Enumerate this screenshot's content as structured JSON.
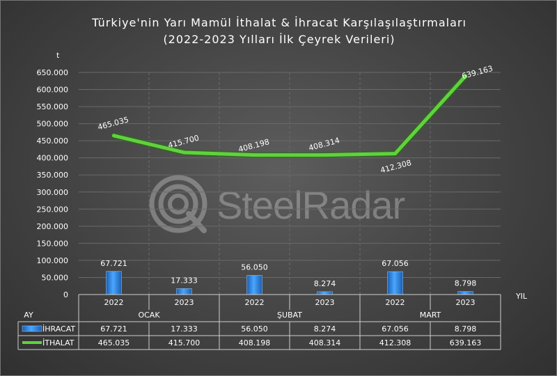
{
  "header": {
    "title_line1": "Türkiye'nin Yarı Mamül İthalat & İhracat Karşılaşılaştırmaları",
    "title_line2": "(2022-2023 Yılları İlk Çeyrek Verileri)"
  },
  "watermark": {
    "text": "SteelRadar"
  },
  "chart_data": {
    "type": "bar",
    "combo": "bar+line",
    "title": "Türkiye'nin Yarı Mamül İthalat & İhracat Karşılaşılaştırmaları (2022-2023 Yılları İlk Çeyrek Verileri)",
    "ylabel": "t",
    "xlabel": "YIL",
    "x_group_label": "AY",
    "ylim": [
      0,
      650000
    ],
    "y_ticks": [
      0,
      50000,
      100000,
      150000,
      200000,
      250000,
      300000,
      350000,
      400000,
      450000,
      500000,
      550000,
      600000,
      650000
    ],
    "y_tick_labels": [
      "0",
      "50.000",
      "100.000",
      "150.000",
      "200.000",
      "250.000",
      "300.000",
      "350.000",
      "400.000",
      "450.000",
      "500.000",
      "550.000",
      "600.000",
      "650.000"
    ],
    "grid": true,
    "categories": [
      "2022",
      "2023",
      "2022",
      "2023",
      "2022",
      "2023"
    ],
    "groups": [
      {
        "label": "OCAK",
        "span": 2
      },
      {
        "label": "ŞUBAT",
        "span": 2
      },
      {
        "label": "MART",
        "span": 2
      }
    ],
    "series": [
      {
        "name": "İHRACAT",
        "kind": "bar",
        "color": "#2e86e0",
        "values": [
          67721,
          17333,
          56050,
          8274,
          67056,
          8798
        ],
        "labels": [
          "67.721",
          "17.333",
          "56.050",
          "8.274",
          "67.056",
          "8.798"
        ]
      },
      {
        "name": "İTHALAT",
        "kind": "line",
        "color": "#5fd33b",
        "values": [
          465035,
          415700,
          408198,
          408314,
          412308,
          639163
        ],
        "labels": [
          "465.035",
          "415.700",
          "408.198",
          "408.314",
          "412.308",
          "639.163"
        ]
      }
    ]
  }
}
